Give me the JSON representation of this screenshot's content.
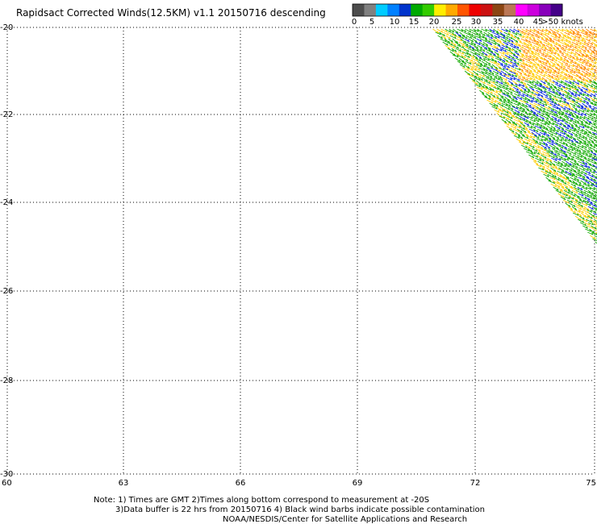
{
  "title": "Rapidsact Corrected Winds(12.5KM) v1.1 20150716 descending",
  "legend": {
    "colors": [
      "#4d4d4d",
      "#808080",
      "#00ccff",
      "#0080ff",
      "#0033cc",
      "#00aa00",
      "#33cc00",
      "#ffee00",
      "#ffaa00",
      "#ff5500",
      "#ee0000",
      "#cc1111",
      "#8b4513",
      "#bb7755",
      "#ff00ff",
      "#cc00dd",
      "#8800bb",
      "#440088"
    ],
    "tick_labels": [
      "0",
      "5",
      "10",
      "15",
      "20",
      "25",
      "30",
      "35",
      "40",
      "45",
      ">50 knots"
    ]
  },
  "axes": {
    "x_labels": [
      "60",
      "63",
      "66",
      "69",
      "72",
      "75"
    ],
    "y_labels": [
      "-20",
      "-22",
      "-24",
      "-26",
      "-28",
      "-30"
    ]
  },
  "wind_barb_colors": {
    "low": "#0022dd",
    "mid": "#11aa00",
    "high": "#ffcc00",
    "strong": "#ff8800"
  },
  "notes": {
    "line1": "Note: 1) Times are GMT 2)Times along bottom correspond to measurement at -20S",
    "line2": "3)Data buffer is 22 hrs from 20150716 4) Black wind barbs indicate possible contamination",
    "line3": "NOAA/NESDIS/Center for Satellite Applications and Research"
  }
}
